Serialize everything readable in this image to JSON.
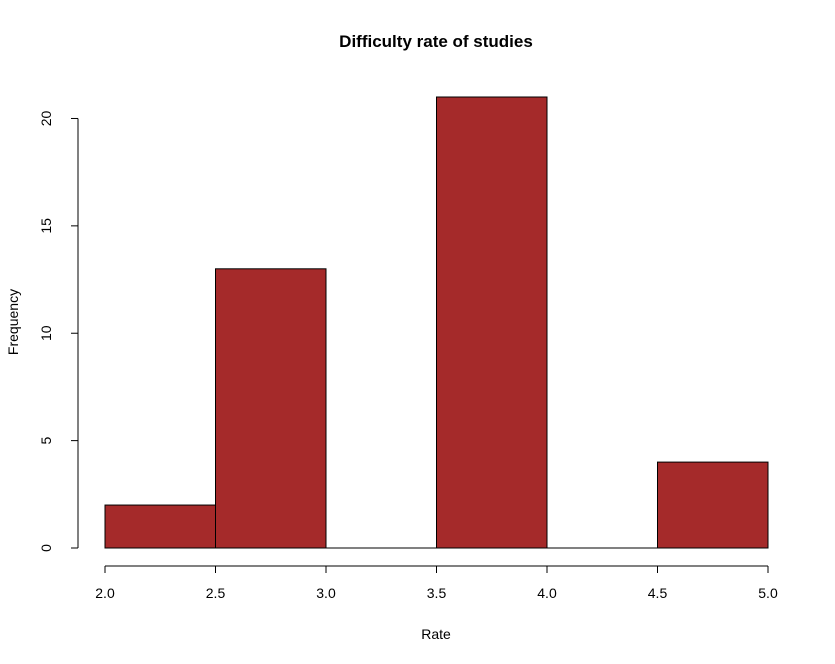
{
  "chart_data": {
    "type": "bar",
    "title": "Difficulty rate of studies",
    "xlabel": "Rate",
    "ylabel": "Frequency",
    "bins": [
      [
        2.0,
        2.5
      ],
      [
        2.5,
        3.0
      ],
      [
        3.0,
        3.5
      ],
      [
        3.5,
        4.0
      ],
      [
        4.0,
        4.5
      ],
      [
        4.5,
        5.0
      ]
    ],
    "values": [
      2,
      13,
      0,
      21,
      0,
      4
    ],
    "xlim": [
      2.0,
      5.0
    ],
    "ylim": [
      0,
      21
    ],
    "x_ticks": [
      "2.0",
      "2.5",
      "3.0",
      "3.5",
      "4.0",
      "4.5",
      "5.0"
    ],
    "y_ticks": [
      "0",
      "5",
      "10",
      "15",
      "20"
    ],
    "grid": false,
    "bar_color": "#a52a2a"
  }
}
